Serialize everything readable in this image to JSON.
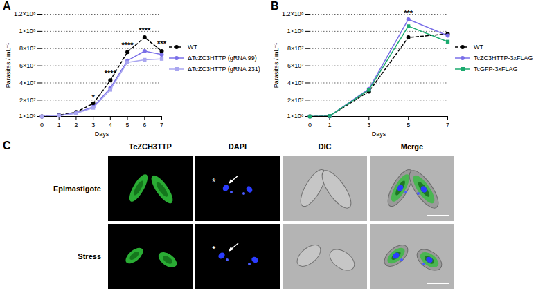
{
  "chart_data": [
    {
      "type": "line",
      "panel": "A",
      "x": [
        0,
        1,
        2,
        3,
        4,
        5,
        6,
        7
      ],
      "x_label": "Days",
      "y_label": "Parasites / mL⁻¹",
      "xlim": [
        0,
        7
      ],
      "xticks": [
        0,
        1,
        2,
        3,
        4,
        5,
        6,
        7
      ],
      "ylim": [
        1000000,
        120000000
      ],
      "yticks": [
        {
          "value": 1000000,
          "label": "1×10⁶"
        },
        {
          "value": 20000000,
          "label": "2×10⁷"
        },
        {
          "value": 40000000,
          "label": "4×10⁷"
        },
        {
          "value": 60000000,
          "label": "6×10⁷"
        },
        {
          "value": 80000000,
          "label": "8×10⁷"
        },
        {
          "value": 100000000,
          "label": "1×10⁸"
        },
        {
          "value": 120000000,
          "label": "1.2×10⁸"
        }
      ],
      "grid": true,
      "legend": "right",
      "series": [
        {
          "name": "WT",
          "color": "#000000",
          "marker": "circle",
          "line_style": "dashed",
          "values": [
            1000000,
            2500000,
            6000000,
            16000000,
            43000000,
            76000000,
            93000000,
            77000000
          ]
        },
        {
          "name": "ΔTcZC3HTTP (gRNA 99)",
          "color": "#7a6fe8",
          "marker": "circle",
          "line_style": "solid",
          "values": [
            1000000,
            2000000,
            5000000,
            12000000,
            34000000,
            66000000,
            77000000,
            73000000
          ]
        },
        {
          "name": "ΔTcZC3HTTP (gRNA 231)",
          "color": "#a9a6f0",
          "marker": "square",
          "line_style": "solid",
          "values": [
            1000000,
            2000000,
            4500000,
            11000000,
            32000000,
            64000000,
            67000000,
            68000000
          ]
        }
      ],
      "annotations": [
        {
          "x": 3,
          "y": 21000000,
          "text": "*"
        },
        {
          "x": 4,
          "y": 49000000,
          "text": "****"
        },
        {
          "x": 5,
          "y": 82000000,
          "text": "****"
        },
        {
          "x": 6,
          "y": 99000000,
          "text": "****"
        },
        {
          "x": 7,
          "y": 84000000,
          "text": "***"
        }
      ]
    },
    {
      "type": "line",
      "panel": "B",
      "x": [
        0,
        1,
        3,
        5,
        7
      ],
      "x_label": "Days",
      "y_label": "Parasites / mL⁻¹",
      "xlim": [
        0,
        7
      ],
      "xticks": [
        0,
        1,
        3,
        5,
        7
      ],
      "ylim": [
        1000000,
        120000000
      ],
      "yticks": [
        {
          "value": 1000000,
          "label": "1×10⁶"
        },
        {
          "value": 20000000,
          "label": "2×10⁷"
        },
        {
          "value": 40000000,
          "label": "4×10⁷"
        },
        {
          "value": 60000000,
          "label": "6×10⁷"
        },
        {
          "value": 80000000,
          "label": "8×10⁷"
        },
        {
          "value": 100000000,
          "label": "1×10⁸"
        },
        {
          "value": 120000000,
          "label": "1.2×10⁸"
        }
      ],
      "grid": true,
      "legend": "right",
      "series": [
        {
          "name": "WT",
          "color": "#000000",
          "marker": "circle",
          "line_style": "dashed",
          "values": [
            1000000,
            1500000,
            30000000,
            93000000,
            97000000
          ]
        },
        {
          "name": "TcZC3HTTP-3xFLAG",
          "color": "#7a6fe8",
          "marker": "circle",
          "line_style": "solid",
          "values": [
            1000000,
            1500000,
            33000000,
            114000000,
            95000000
          ]
        },
        {
          "name": "TcGFP-3xFLAG",
          "color": "#1aaa6e",
          "marker": "square",
          "line_style": "solid",
          "values": [
            1000000,
            1500000,
            32000000,
            106000000,
            88000000
          ]
        }
      ],
      "annotations": [
        {
          "x": 5,
          "y": 119000000,
          "text": "***"
        }
      ]
    }
  ],
  "figure_c": {
    "panel": "C",
    "columns": [
      "TcZCH3TTP",
      "DAPI",
      "DIC",
      "Merge"
    ],
    "rows": [
      "Epimastigote",
      "Stress"
    ],
    "marker_text": "*"
  }
}
